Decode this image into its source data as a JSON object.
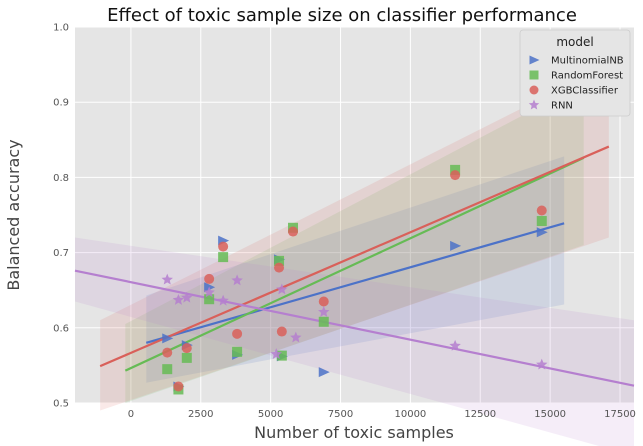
{
  "chart_data": {
    "type": "scatter",
    "title": "Effect of toxic sample size on classifier performance",
    "xlabel": "Number of toxic samples",
    "ylabel": "Balanced accuracy",
    "xlim": [
      -2000,
      18000
    ],
    "ylim": [
      0.5,
      1.0
    ],
    "xticks": [
      0,
      2500,
      5000,
      7500,
      10000,
      12500,
      15000,
      17500
    ],
    "yticks": [
      0.5,
      0.6,
      0.7,
      0.8,
      0.9,
      1.0
    ],
    "grid": true,
    "legend_title": "model",
    "legend_position": "top-right",
    "series": [
      {
        "name": "MultinomialNB",
        "color": "#4c72c8",
        "marker": "triangle-right",
        "points": [
          [
            1300,
            0.586
          ],
          [
            1700,
            0.522
          ],
          [
            2000,
            0.577
          ],
          [
            2800,
            0.654
          ],
          [
            3300,
            0.716
          ],
          [
            3800,
            0.564
          ],
          [
            5300,
            0.691
          ],
          [
            5400,
            0.562
          ],
          [
            6900,
            0.541
          ],
          [
            11600,
            0.709
          ],
          [
            14700,
            0.727
          ]
        ],
        "fit": {
          "x": [
            550,
            15500
          ],
          "y": [
            0.58,
            0.739
          ],
          "ci_low": [
            0.527,
            0.631
          ],
          "ci_high": [
            0.643,
            0.828
          ]
        }
      },
      {
        "name": "RandomForest",
        "color": "#66bb55",
        "marker": "square",
        "points": [
          [
            1300,
            0.545
          ],
          [
            1700,
            0.518
          ],
          [
            2000,
            0.56
          ],
          [
            2800,
            0.638
          ],
          [
            3300,
            0.694
          ],
          [
            3800,
            0.568
          ],
          [
            5300,
            0.689
          ],
          [
            5400,
            0.563
          ],
          [
            5800,
            0.733
          ],
          [
            6900,
            0.608
          ],
          [
            11600,
            0.81
          ],
          [
            14700,
            0.742
          ]
        ],
        "fit": {
          "x": [
            -200,
            16200
          ],
          "y": [
            0.543,
            0.826
          ],
          "ci_low": [
            0.5,
            0.71
          ],
          "ci_high": [
            0.605,
            0.925
          ]
        }
      },
      {
        "name": "XGBClassifier",
        "color": "#d9605a",
        "marker": "circle",
        "points": [
          [
            1300,
            0.567
          ],
          [
            1700,
            0.522
          ],
          [
            2000,
            0.573
          ],
          [
            2800,
            0.665
          ],
          [
            3300,
            0.708
          ],
          [
            3800,
            0.592
          ],
          [
            5300,
            0.68
          ],
          [
            5400,
            0.595
          ],
          [
            5800,
            0.728
          ],
          [
            6900,
            0.635
          ],
          [
            11600,
            0.803
          ],
          [
            14700,
            0.756
          ]
        ],
        "fit": {
          "x": [
            -1100,
            17100
          ],
          "y": [
            0.549,
            0.841
          ],
          "ci_low": [
            0.49,
            0.72
          ],
          "ci_high": [
            0.61,
            0.95
          ]
        }
      },
      {
        "name": "RNN",
        "color": "#b57fcf",
        "marker": "star",
        "points": [
          [
            1300,
            0.664
          ],
          [
            1700,
            0.637
          ],
          [
            2000,
            0.64
          ],
          [
            2800,
            0.647
          ],
          [
            3300,
            0.636
          ],
          [
            3800,
            0.663
          ],
          [
            5200,
            0.565
          ],
          [
            5400,
            0.651
          ],
          [
            5900,
            0.587
          ],
          [
            6900,
            0.621
          ],
          [
            11600,
            0.576
          ],
          [
            14700,
            0.551
          ]
        ],
        "fit": {
          "x": [
            -2000,
            18000
          ],
          "y": [
            0.676,
            0.523
          ],
          "ci_low": [
            0.635,
            0.43
          ],
          "ci_high": [
            0.72,
            0.61
          ]
        }
      }
    ]
  }
}
